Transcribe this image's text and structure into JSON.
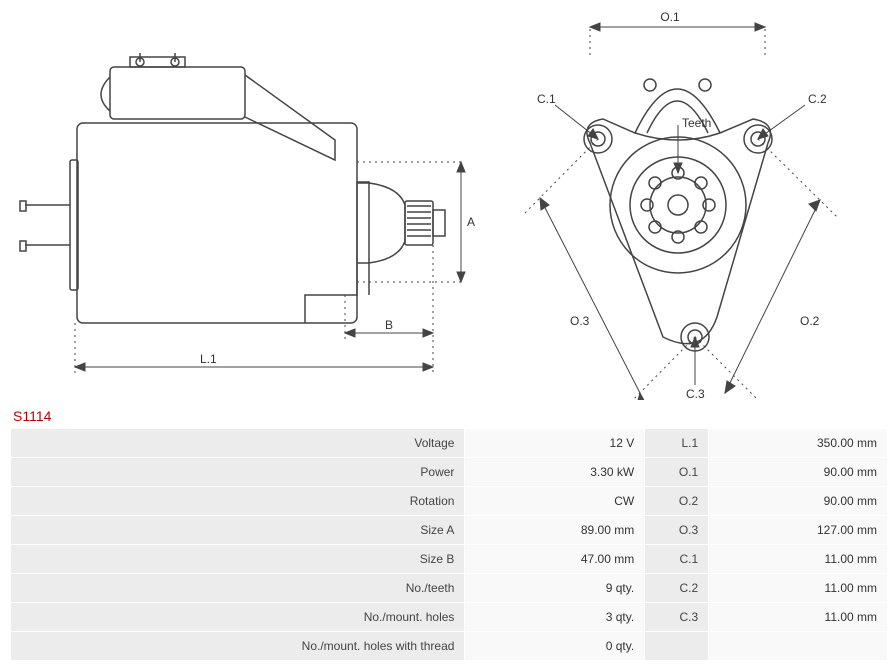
{
  "part_number": "S1114",
  "diagrams": {
    "side": {
      "labels": {
        "L1": "L.1",
        "B": "B",
        "A": "A"
      },
      "stroke": "#444444",
      "dim_stroke": "#444444",
      "dash": "2,4"
    },
    "front": {
      "labels": {
        "O1": "O.1",
        "O2": "O.2",
        "O3": "O.3",
        "C1": "C.1",
        "C2": "C.2",
        "C3": "C.3",
        "Teeth": "Teeth"
      },
      "stroke": "#444444",
      "dash": "2,4"
    }
  },
  "specs_left": [
    {
      "label": "Voltage",
      "value": "12 V"
    },
    {
      "label": "Power",
      "value": "3.30 kW"
    },
    {
      "label": "Rotation",
      "value": "CW"
    },
    {
      "label": "Size A",
      "value": "89.00 mm"
    },
    {
      "label": "Size B",
      "value": "47.00 mm"
    },
    {
      "label": "No./teeth",
      "value": "9 qty."
    },
    {
      "label": "No./mount. holes",
      "value": "3 qty."
    },
    {
      "label": "No./mount. holes with thread",
      "value": "0 qty."
    }
  ],
  "specs_right": [
    {
      "label": "L.1",
      "value": "350.00 mm"
    },
    {
      "label": "O.1",
      "value": "90.00 mm"
    },
    {
      "label": "O.2",
      "value": "90.00 mm"
    },
    {
      "label": "O.3",
      "value": "127.00 mm"
    },
    {
      "label": "C.1",
      "value": "11.00 mm"
    },
    {
      "label": "C.2",
      "value": "11.00 mm"
    },
    {
      "label": "C.3",
      "value": "11.00 mm"
    }
  ],
  "colors": {
    "row_label_bg": "#ececec",
    "row_value_bg": "#f9f9f9",
    "border": "#ffffff",
    "part_number_color": "#c00000"
  }
}
